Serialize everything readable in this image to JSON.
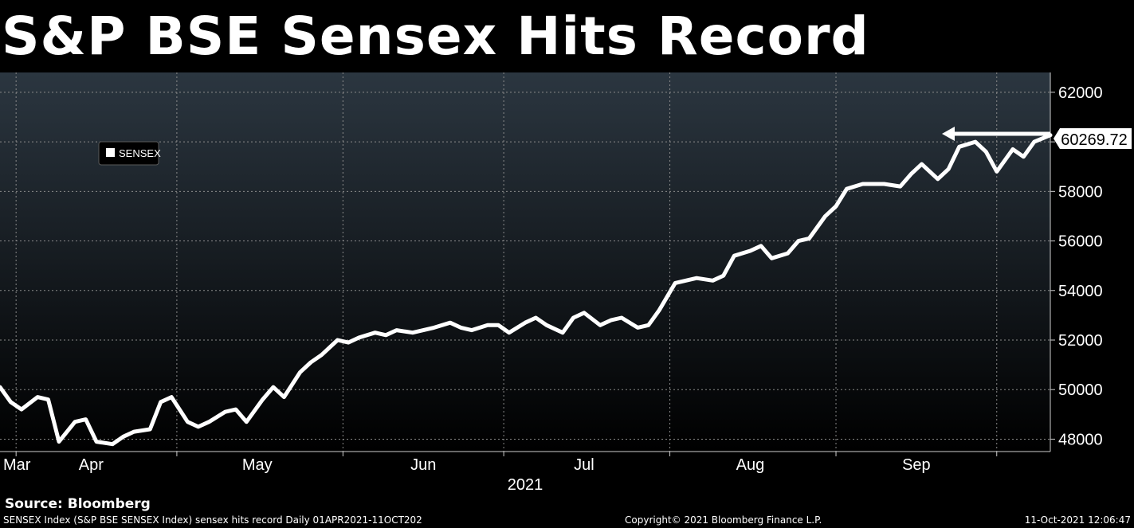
{
  "title": "S&P BSE Sensex Hits Record",
  "source": "Source: Bloomberg",
  "footer": {
    "left": "SENSEX Index (S&P BSE SENSEX Index) sensex hits record  Daily 01APR2021-11OCT202",
    "center": "Copyright© 2021 Bloomberg Finance L.P.",
    "right": "11-Oct-2021 12:06:47"
  },
  "colors": {
    "background_top": "#2b3640",
    "background_bottom": "#000000",
    "line": "#ffffff",
    "grid": "#8a8a8a"
  },
  "chart_data": {
    "type": "line",
    "series": [
      {
        "name": "SENSEX",
        "x": [
          "2021-03-29",
          "2021-03-31",
          "2021-04-02",
          "2021-04-05",
          "2021-04-07",
          "2021-04-09",
          "2021-04-12",
          "2021-04-14",
          "2021-04-16",
          "2021-04-19",
          "2021-04-21",
          "2021-04-23",
          "2021-04-26",
          "2021-04-28",
          "2021-04-30",
          "2021-05-03",
          "2021-05-05",
          "2021-05-07",
          "2021-05-10",
          "2021-05-12",
          "2021-05-14",
          "2021-05-17",
          "2021-05-19",
          "2021-05-21",
          "2021-05-24",
          "2021-05-26",
          "2021-05-28",
          "2021-05-31",
          "2021-06-02",
          "2021-06-04",
          "2021-06-07",
          "2021-06-09",
          "2021-06-11",
          "2021-06-14",
          "2021-06-16",
          "2021-06-18",
          "2021-06-21",
          "2021-06-23",
          "2021-06-25",
          "2021-06-28",
          "2021-06-30",
          "2021-07-02",
          "2021-07-05",
          "2021-07-07",
          "2021-07-09",
          "2021-07-12",
          "2021-07-14",
          "2021-07-16",
          "2021-07-19",
          "2021-07-21",
          "2021-07-23",
          "2021-07-26",
          "2021-07-28",
          "2021-07-30",
          "2021-08-02",
          "2021-08-04",
          "2021-08-06",
          "2021-08-09",
          "2021-08-11",
          "2021-08-13",
          "2021-08-16",
          "2021-08-18",
          "2021-08-20",
          "2021-08-23",
          "2021-08-25",
          "2021-08-27",
          "2021-08-30",
          "2021-09-01",
          "2021-09-03",
          "2021-09-06",
          "2021-09-08",
          "2021-09-10",
          "2021-09-13",
          "2021-09-15",
          "2021-09-17",
          "2021-09-20",
          "2021-09-22",
          "2021-09-24",
          "2021-09-27",
          "2021-09-29",
          "2021-10-01",
          "2021-10-04",
          "2021-10-06",
          "2021-10-08",
          "2021-10-11"
        ],
        "values": [
          50100,
          49500,
          49200,
          49700,
          49600,
          47900,
          48700,
          48800,
          47900,
          47800,
          48100,
          48300,
          48400,
          49500,
          49700,
          48700,
          48500,
          48700,
          49100,
          49200,
          48700,
          49600,
          50100,
          49700,
          50700,
          51100,
          51400,
          52000,
          51900,
          52100,
          52300,
          52200,
          52400,
          52300,
          52400,
          52500,
          52700,
          52500,
          52400,
          52600,
          52600,
          52300,
          52700,
          52900,
          52600,
          52300,
          52900,
          53100,
          52600,
          52800,
          52900,
          52500,
          52600,
          53200,
          54300,
          54400,
          54500,
          54400,
          54600,
          55400,
          55600,
          55800,
          55300,
          55500,
          56000,
          56100,
          57000,
          57400,
          58100,
          58300,
          58300,
          58300,
          58200,
          58700,
          59100,
          58500,
          58900,
          59800,
          60000,
          59600,
          58800,
          59700,
          59400,
          60000,
          60270
        ]
      }
    ],
    "last_value_label": "60269.72",
    "x_tick_labels": [
      "Mar",
      "Apr",
      "May",
      "Jun",
      "Jul",
      "Aug",
      "Sep"
    ],
    "x_year_label": "2021",
    "y_ticks": [
      48000,
      50000,
      52000,
      54000,
      56000,
      58000,
      60000,
      62000
    ],
    "ylim": [
      47500,
      62800
    ],
    "xlim": [
      "2021-03-29",
      "2021-10-11"
    ],
    "legend": "top-left",
    "grid": true
  }
}
